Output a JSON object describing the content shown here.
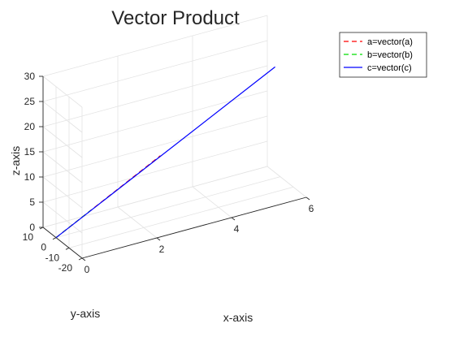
{
  "chart_data": {
    "type": "line",
    "projection": "3d",
    "title": "Vector Product",
    "xlabel": "x-axis",
    "ylabel": "y-axis",
    "zlabel": "z-axis",
    "xlim": [
      0,
      6
    ],
    "ylim": [
      -20,
      10
    ],
    "zlim": [
      0,
      30
    ],
    "xticks": [
      0,
      2,
      4,
      6
    ],
    "yticks": [
      -20,
      -10,
      0,
      10
    ],
    "zticks": [
      0,
      5,
      10,
      15,
      20,
      25,
      30
    ],
    "grid": true,
    "legend_position": "top-right",
    "series": [
      {
        "name": "a=vector(a)",
        "color": "#ff0000",
        "style": "dashed",
        "start": [
          0,
          0,
          0
        ],
        "end": [
          3,
          6,
          9
        ]
      },
      {
        "name": "b=vector(b)",
        "color": "#00dd00",
        "style": "dashed",
        "start": [
          0,
          0,
          0
        ],
        "end": [
          1,
          2,
          3
        ]
      },
      {
        "name": "c=vector(c)",
        "color": "#0000ff",
        "style": "solid",
        "start": [
          0,
          0,
          0
        ],
        "end": [
          6,
          4,
          21
        ]
      }
    ]
  }
}
